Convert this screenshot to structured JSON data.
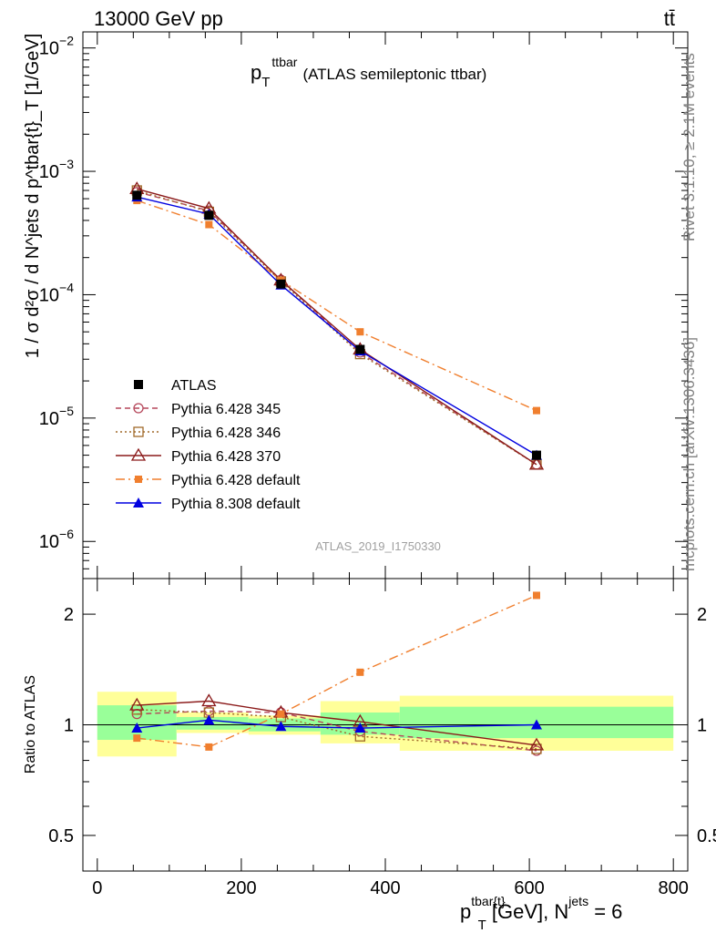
{
  "header": {
    "energy_label": "13000 GeV pp",
    "process_label": "tt̄"
  },
  "side_labels": {
    "rivet": "Rivet 3.1.10, ≥ 2.1M events",
    "mcplots": "mcplots.cern.ch [arXiv:1306.3436]"
  },
  "watermark": "ATLAS_2019_I1750330",
  "chart_data": [
    {
      "panel": "main",
      "type": "line",
      "scale": "log",
      "title_main": "p",
      "title_sub": "T",
      "title_sup": "ttbar",
      "title_rest": "(ATLAS semileptonic ttbar)",
      "ylabel": "1 / σ d²σ / d N^jets d p^tbar{t}_T [1/GeV]",
      "xlim": [
        -20,
        820
      ],
      "ylim": [
        5e-07,
        0.0135
      ],
      "ytick_labels": [
        {
          "value": 1e-06,
          "base": "10",
          "exp": "−6"
        },
        {
          "value": 1e-05,
          "base": "10",
          "exp": "−5"
        },
        {
          "value": 0.0001,
          "base": "10",
          "exp": "−4"
        },
        {
          "value": 0.001,
          "base": "10",
          "exp": "−3"
        },
        {
          "value": 0.01,
          "base": "10",
          "exp": "−2"
        }
      ],
      "legend_position": "center-left",
      "x": [
        55,
        155,
        255,
        365,
        610
      ],
      "data": {
        "name": "ATLAS",
        "values": [
          0.00064,
          0.00044,
          0.000122,
          3.6e-05,
          5e-06
        ],
        "color": "#000000",
        "marker": "square-filled"
      },
      "series": [
        {
          "name": "Pythia 6.428 345",
          "values": [
            0.00068,
            0.00048,
            0.000132,
            3.4e-05,
            4.2e-06
          ],
          "color": "#b5465a",
          "marker": "circle-open",
          "dash": "6,4"
        },
        {
          "name": "Pythia 6.428 346",
          "values": [
            0.0007,
            0.00047,
            0.000128,
            3.3e-05,
            4.2e-06
          ],
          "color": "#a06a2a",
          "marker": "square-open",
          "dash": "2,3"
        },
        {
          "name": "Pythia 6.428 370",
          "values": [
            0.00072,
            0.0005,
            0.000131,
            3.6e-05,
            4.2e-06
          ],
          "color": "#8b1a1a",
          "marker": "triangle-open",
          "dash": ""
        },
        {
          "name": "Pythia 6.428 default",
          "values": [
            0.00058,
            0.00037,
            0.000131,
            5e-05,
            1.15e-05
          ],
          "color": "#f07f2e",
          "marker": "square-filled-small",
          "dash": "10,4,2,4"
        },
        {
          "name": "Pythia 8.308 default",
          "values": [
            0.00062,
            0.00045,
            0.00012,
            3.5e-05,
            5e-06
          ],
          "color": "#0000e0",
          "marker": "triangle-filled",
          "dash": ""
        }
      ]
    },
    {
      "panel": "ratio",
      "type": "line",
      "scale": "log",
      "ylabel": "Ratio to ATLAS",
      "ylim": [
        0.4,
        2.5
      ],
      "yticks": [
        0.5,
        1,
        2
      ],
      "ytick_labels": [
        "0.5",
        "1",
        "2"
      ],
      "xlabel_main": "p",
      "xlabel_sup": "tbar{t}",
      "xlabel_sub": "T",
      "xlabel_mid": " [GeV], N",
      "xlabel_sup2": "jets",
      "xlabel_tail": " = 6",
      "xticks": [
        0,
        200,
        400,
        600,
        800
      ],
      "xtick_labels": [
        "0",
        "200",
        "400",
        "600",
        "800"
      ],
      "bins": [
        [
          0,
          110
        ],
        [
          110,
          210
        ],
        [
          210,
          310
        ],
        [
          310,
          420
        ],
        [
          420,
          800
        ]
      ],
      "band_yellow": [
        [
          0.82,
          1.23
        ],
        [
          0.95,
          1.08
        ],
        [
          0.94,
          1.06
        ],
        [
          0.89,
          1.16
        ],
        [
          0.85,
          1.2
        ]
      ],
      "band_green": [
        [
          0.91,
          1.13
        ],
        [
          0.97,
          1.05
        ],
        [
          0.96,
          1.04
        ],
        [
          0.94,
          1.08
        ],
        [
          0.92,
          1.12
        ]
      ],
      "series": [
        {
          "name": "Pythia 6.428 345",
          "values": [
            1.07,
            1.09,
            1.08,
            0.96,
            0.85
          ]
        },
        {
          "name": "Pythia 6.428 346",
          "values": [
            1.1,
            1.08,
            1.05,
            0.93,
            0.86
          ]
        },
        {
          "name": "Pythia 6.428 370",
          "values": [
            1.13,
            1.16,
            1.08,
            1.02,
            0.88
          ]
        },
        {
          "name": "Pythia 6.428 default",
          "values": [
            0.92,
            0.87,
            1.07,
            1.39,
            2.25
          ]
        },
        {
          "name": "Pythia 8.308 default",
          "values": [
            0.98,
            1.03,
            0.99,
            0.98,
            1.0
          ]
        }
      ]
    }
  ]
}
